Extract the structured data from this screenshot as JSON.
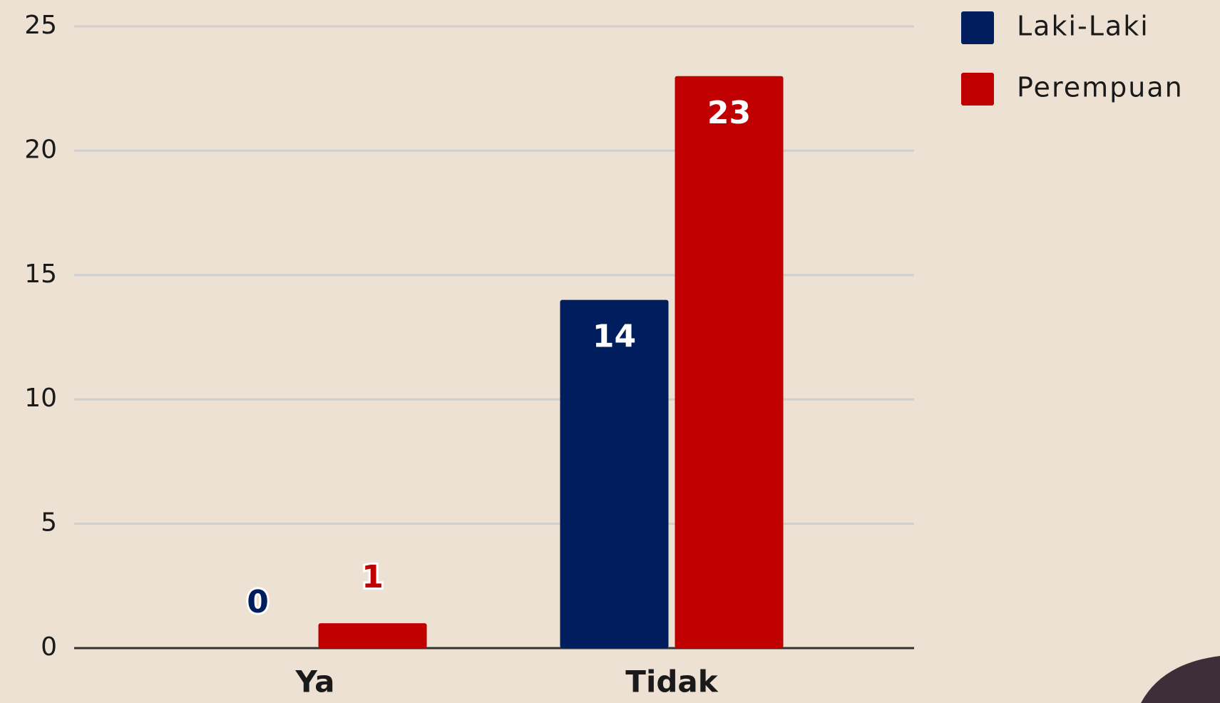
{
  "chart_data": {
    "type": "bar",
    "categories": [
      "Ya",
      "Tidak"
    ],
    "series": [
      {
        "name": "Laki-Laki",
        "color": "#001e5e",
        "values": [
          0,
          14
        ]
      },
      {
        "name": "Perempuan",
        "color": "#c00000",
        "values": [
          1,
          23
        ]
      }
    ],
    "ylim": [
      0,
      25
    ],
    "yticks": [
      0,
      5,
      10,
      15,
      20,
      25
    ],
    "grid": true,
    "legend": "top-right"
  }
}
